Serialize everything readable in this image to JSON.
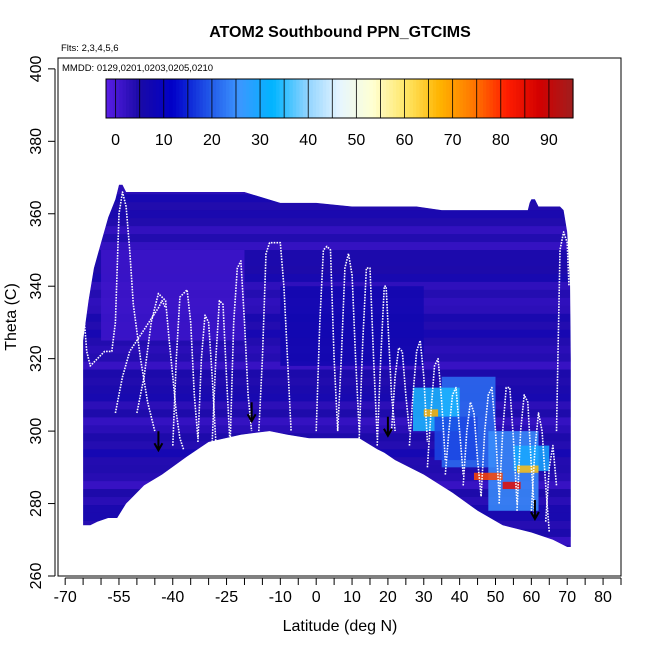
{
  "chart_data": {
    "type": "heatmap",
    "title": "ATOM2 Southbound PPN_GTCIMS",
    "annotations": [
      "Flts: 2,3,4,5,6",
      "MMDD: 0129,0201,0203,0205,0210"
    ],
    "xlabel": "Latitude (deg N)",
    "ylabel": "Theta (C)",
    "xlim": [
      -72,
      85
    ],
    "ylim": [
      260,
      403
    ],
    "xticks": [
      -70,
      -65,
      -60,
      -55,
      -50,
      -45,
      -40,
      -35,
      -30,
      -25,
      -20,
      -15,
      -10,
      -5,
      0,
      5,
      10,
      15,
      20,
      25,
      30,
      35,
      40,
      45,
      50,
      55,
      60,
      65,
      70,
      75,
      80,
      85
    ],
    "xtick_labels": [
      "-70",
      "",
      "",
      "-55",
      "",
      "",
      "-40",
      "",
      "",
      "-25",
      "",
      "",
      "-10",
      "",
      "0",
      "",
      "10",
      "",
      "20",
      "",
      "30",
      "",
      "40",
      "",
      "50",
      "",
      "60",
      "",
      "70",
      "",
      "80",
      ""
    ],
    "yticks": [
      260,
      280,
      300,
      320,
      340,
      360,
      380,
      400
    ],
    "colorbar": {
      "min": -2,
      "max": 95,
      "ticks": [
        0,
        10,
        20,
        30,
        40,
        50,
        60,
        70,
        80,
        90
      ],
      "tick_labels": [
        "0",
        "10",
        "20",
        "30",
        "40",
        "50",
        "60",
        "70",
        "80",
        "90"
      ],
      "colors": [
        "#5a1ee6",
        "#1a0aa6",
        "#0000c8",
        "#1e50e6",
        "#3c96ff",
        "#00b4ff",
        "#8cd2ff",
        "#e6f5ff",
        "#ffffd2",
        "#ffe664",
        "#ffb400",
        "#ff7800",
        "#ff1e00",
        "#d20000",
        "#a01e1e"
      ]
    },
    "domain_outline": {
      "lat": [
        -65,
        -65,
        -63.5,
        -62,
        -60,
        -58,
        -56,
        -55,
        -54,
        -53,
        -40,
        -30,
        -20,
        -10,
        0,
        10,
        20,
        28,
        35,
        50,
        59,
        59.5,
        60,
        61,
        62,
        67,
        68,
        69,
        70,
        70.8,
        71,
        71,
        70,
        66,
        60,
        52,
        45,
        38,
        30,
        22,
        19,
        17,
        12,
        5,
        -2,
        -8,
        -13,
        -21,
        -30,
        -36,
        -43,
        -48,
        -53,
        -55.5,
        -58,
        -61,
        -63,
        -65
      ],
      "theta": [
        274,
        325,
        336,
        345,
        352,
        359,
        364,
        368,
        368,
        366,
        366,
        366,
        366,
        363,
        363,
        362,
        362,
        362,
        361,
        361,
        361,
        363,
        364,
        364,
        362,
        362,
        362,
        361,
        355,
        340,
        320,
        268,
        268,
        270,
        272,
        274,
        278,
        283,
        288,
        292,
        294,
        295,
        298,
        298,
        298,
        299,
        300,
        299,
        297,
        293,
        288,
        285,
        280,
        276,
        276,
        275,
        274,
        274
      ]
    },
    "background_value": 4,
    "enhancements": [
      {
        "lat": [
          35,
          50
        ],
        "theta": [
          290,
          315
        ],
        "value": 22
      },
      {
        "lat": [
          48,
          62
        ],
        "theta": [
          278,
          300
        ],
        "value": 25
      },
      {
        "lat": [
          27,
          40
        ],
        "theta": [
          300,
          312
        ],
        "value": 34
      },
      {
        "lat": [
          33,
          45
        ],
        "theta": [
          292,
          304
        ],
        "value": 18
      },
      {
        "lat": [
          55,
          65
        ],
        "theta": [
          289,
          296
        ],
        "value": 30
      },
      {
        "lat": [
          30,
          34
        ],
        "theta": [
          304,
          306
        ],
        "value": 68
      },
      {
        "lat": [
          44,
          52
        ],
        "theta": [
          286.5,
          288.5
        ],
        "value": 78
      },
      {
        "lat": [
          52,
          57
        ],
        "theta": [
          284,
          286
        ],
        "value": 85
      },
      {
        "lat": [
          56,
          62
        ],
        "theta": [
          288.5,
          290.5
        ],
        "value": 66
      },
      {
        "lat": [
          -60,
          -20
        ],
        "theta": [
          325,
          350
        ],
        "value": 1
      },
      {
        "lat": [
          -10,
          30
        ],
        "theta": [
          318,
          340
        ],
        "value": 7
      }
    ],
    "flight_tracks": [
      {
        "lat": [
          -65,
          -64,
          -63,
          -61,
          -59,
          -57,
          -56,
          -55.5,
          -55,
          -54,
          -53,
          -52,
          -51,
          -49,
          -47,
          -45
        ],
        "theta": [
          335,
          322,
          318,
          320,
          322,
          322,
          330,
          345,
          360,
          366,
          362,
          350,
          335,
          320,
          308,
          300
        ]
      },
      {
        "lat": [
          -50,
          -48,
          -46,
          -44,
          -43,
          -42,
          -41,
          -40,
          -39,
          -38,
          -37
        ],
        "theta": [
          305,
          315,
          330,
          338,
          337,
          336,
          325,
          315,
          305,
          298,
          295
        ]
      },
      {
        "lat": [
          -56,
          -54,
          -52,
          -50,
          -48,
          -46,
          -44,
          -43,
          -42
        ],
        "theta": [
          305,
          315,
          322,
          325,
          328,
          331,
          334,
          336,
          334
        ]
      },
      {
        "lat": [
          -40,
          -39,
          -38,
          -36,
          -35,
          -34,
          -33
        ],
        "theta": [
          296,
          320,
          337,
          339,
          330,
          310,
          298
        ]
      },
      {
        "lat": [
          -33,
          -32,
          -31,
          -30,
          -29,
          -28
        ],
        "theta": [
          297,
          320,
          332,
          330,
          315,
          297
        ]
      },
      {
        "lat": [
          -29,
          -28,
          -27,
          -26,
          -25,
          -24
        ],
        "theta": [
          297,
          320,
          336,
          335,
          315,
          296
        ]
      },
      {
        "lat": [
          -24,
          -23,
          -22,
          -21,
          -20,
          -19,
          -18
        ],
        "theta": [
          296,
          330,
          345,
          347,
          330,
          310,
          300
        ]
      },
      {
        "lat": [
          -16,
          -15,
          -14,
          -13,
          -12,
          -11,
          -10,
          -9,
          -8,
          -7
        ],
        "theta": [
          300,
          320,
          349,
          352,
          352,
          352,
          352,
          340,
          320,
          300
        ]
      },
      {
        "lat": [
          0,
          1,
          2,
          3,
          4,
          5,
          6
        ],
        "theta": [
          300,
          330,
          350,
          351,
          350,
          320,
          300
        ]
      },
      {
        "lat": [
          6,
          7,
          8,
          9,
          10,
          11,
          12
        ],
        "theta": [
          300,
          320,
          345,
          349,
          343,
          320,
          300
        ]
      },
      {
        "lat": [
          12,
          13,
          14,
          15,
          16,
          17
        ],
        "theta": [
          298,
          325,
          345,
          345,
          320,
          298
        ]
      },
      {
        "lat": [
          17,
          18,
          19,
          19.5,
          20,
          21,
          22
        ],
        "theta": [
          296,
          320,
          340,
          340,
          330,
          310,
          300
        ]
      },
      {
        "lat": [
          21,
          22,
          23,
          24,
          25,
          26
        ],
        "theta": [
          300,
          315,
          323,
          322,
          310,
          300
        ]
      },
      {
        "lat": [
          26,
          27,
          28,
          29,
          30,
          31
        ],
        "theta": [
          296,
          310,
          322,
          325,
          315,
          297
        ]
      },
      {
        "lat": [
          31,
          32,
          33,
          34,
          35,
          36
        ],
        "theta": [
          290,
          305,
          318,
          320,
          308,
          292
        ]
      },
      {
        "lat": [
          36,
          37,
          38,
          39,
          40,
          41
        ],
        "theta": [
          288,
          300,
          310,
          312,
          300,
          288
        ]
      },
      {
        "lat": [
          41,
          42,
          43,
          44,
          45,
          46
        ],
        "theta": [
          285,
          300,
          308,
          305,
          292,
          282
        ]
      },
      {
        "lat": [
          46,
          47,
          48,
          49,
          50,
          51
        ],
        "theta": [
          282,
          300,
          310,
          312,
          300,
          282
        ]
      },
      {
        "lat": [
          51,
          52,
          53,
          54,
          55,
          56
        ],
        "theta": [
          280,
          300,
          312,
          312,
          298,
          280
        ]
      },
      {
        "lat": [
          56,
          57,
          58,
          59,
          60,
          61
        ],
        "theta": [
          278,
          300,
          310,
          308,
          290,
          276
        ]
      },
      {
        "lat": [
          60,
          61,
          62,
          63,
          64,
          65
        ],
        "theta": [
          278,
          295,
          305,
          300,
          285,
          272
        ]
      },
      {
        "lat": [
          64,
          65,
          66,
          67
        ],
        "theta": [
          275,
          290,
          296,
          285
        ]
      },
      {
        "lat": [
          67,
          68,
          69,
          70,
          70.5
        ],
        "theta": [
          300,
          350,
          355,
          352,
          340
        ]
      }
    ],
    "markers": [
      {
        "lat": -44,
        "theta": 295
      },
      {
        "lat": -18,
        "theta": 303
      },
      {
        "lat": 20,
        "theta": 299
      },
      {
        "lat": 61,
        "theta": 276
      }
    ]
  }
}
